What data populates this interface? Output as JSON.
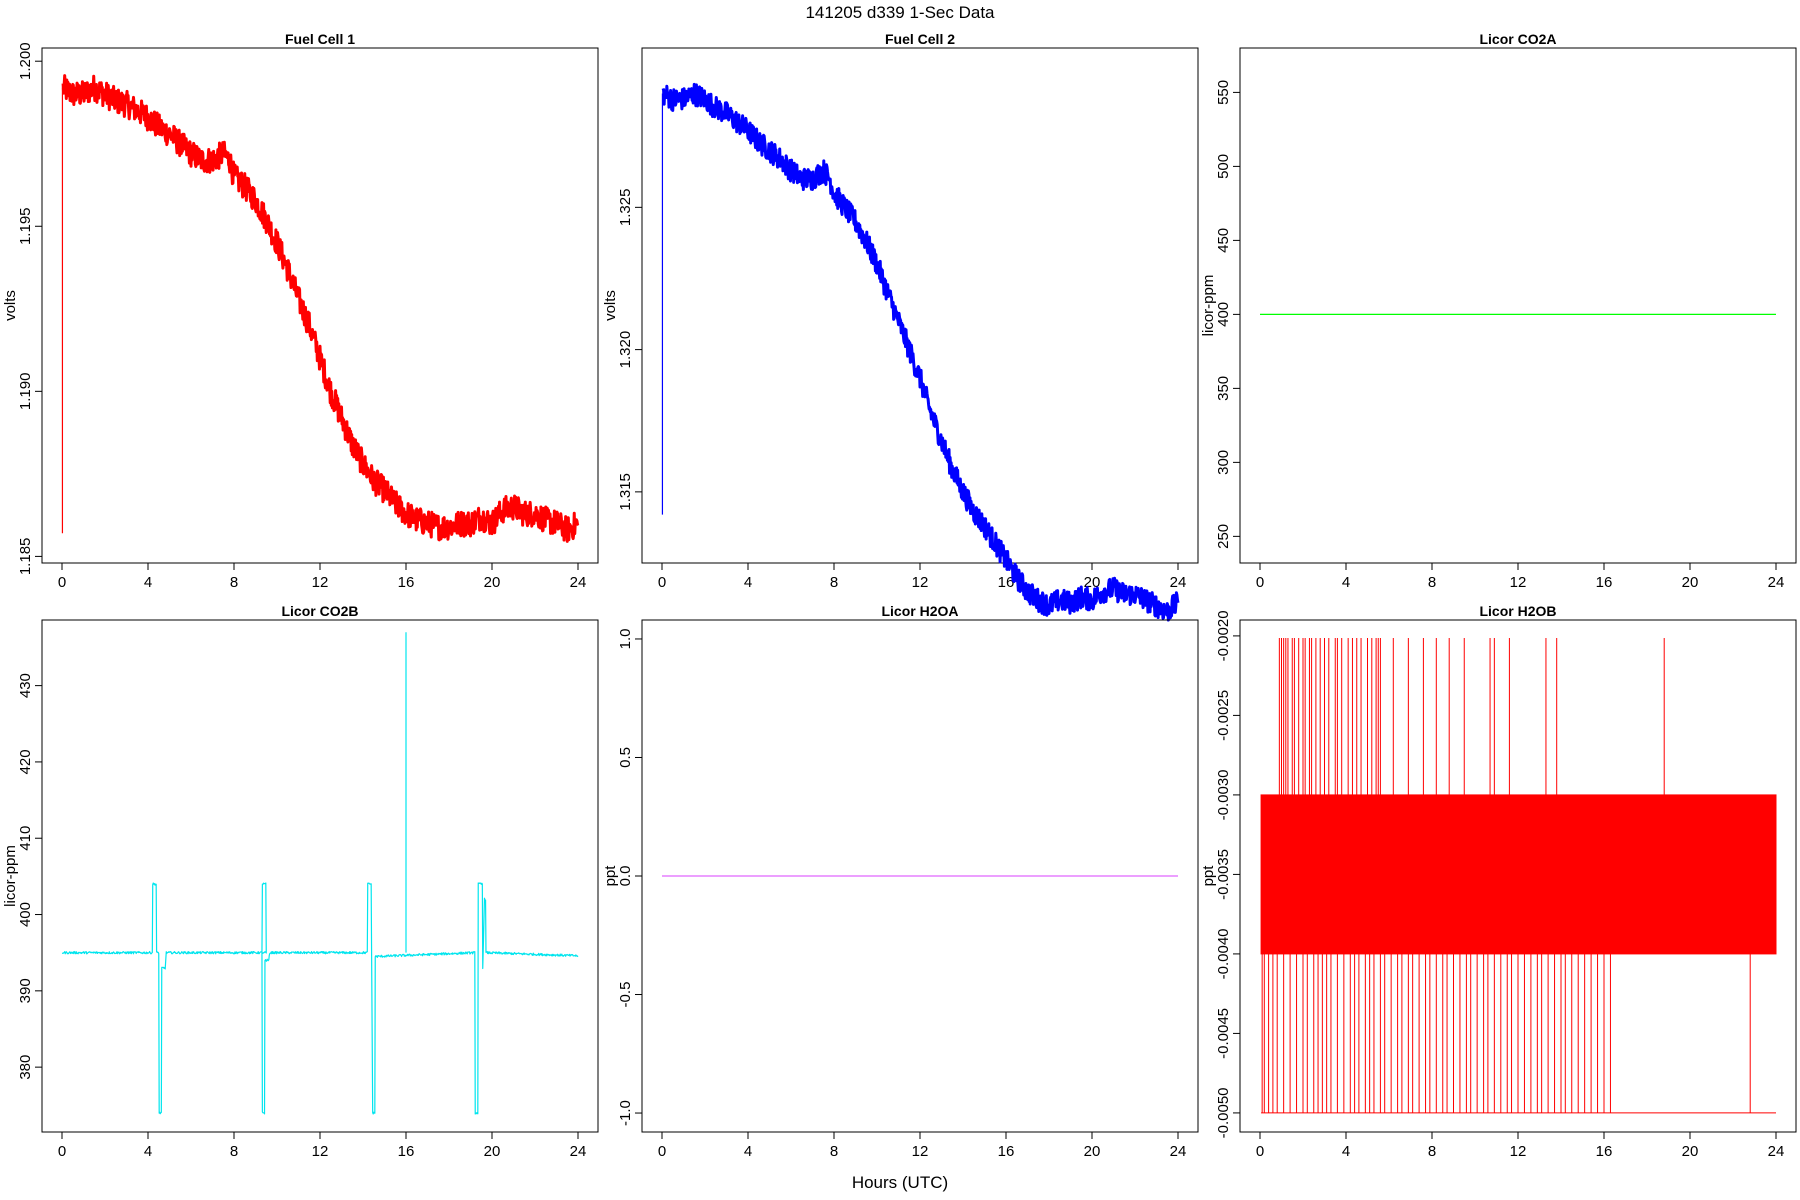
{
  "figure": {
    "title": "141205   d339   1-Sec Data",
    "xlabel": "Hours (UTC)"
  },
  "chart_data": [
    {
      "type": "line",
      "title": "Fuel Cell 1",
      "ylabel": "volts",
      "color": "#ff0000",
      "xlim": [
        0,
        24
      ],
      "ylim": [
        1.1848,
        1.2004
      ],
      "xticks": [
        0,
        4,
        8,
        12,
        16,
        20,
        24
      ],
      "yticks": [
        1.185,
        1.19,
        1.195,
        1.2
      ],
      "ytick_labels": [
        "1.185",
        "1.190",
        "1.195",
        "1.200"
      ],
      "noise": 0.0004,
      "spikes": [
        [
          0.02,
          1.1857
        ]
      ],
      "points": [
        [
          0.05,
          1.1992
        ],
        [
          0.5,
          1.199
        ],
        [
          1.0,
          1.199
        ],
        [
          1.5,
          1.1992
        ],
        [
          2.0,
          1.199
        ],
        [
          2.5,
          1.1988
        ],
        [
          3.0,
          1.1987
        ],
        [
          3.5,
          1.1985
        ],
        [
          4.0,
          1.1983
        ],
        [
          4.5,
          1.198
        ],
        [
          5.0,
          1.1978
        ],
        [
          5.5,
          1.1975
        ],
        [
          6.0,
          1.1972
        ],
        [
          6.5,
          1.197
        ],
        [
          7.0,
          1.197
        ],
        [
          7.5,
          1.1972
        ],
        [
          7.8,
          1.197
        ],
        [
          8.0,
          1.1965
        ],
        [
          8.5,
          1.1962
        ],
        [
          9.0,
          1.1958
        ],
        [
          9.5,
          1.1952
        ],
        [
          10.0,
          1.1945
        ],
        [
          10.5,
          1.1937
        ],
        [
          11.0,
          1.1928
        ],
        [
          11.5,
          1.192
        ],
        [
          12.0,
          1.191
        ],
        [
          12.5,
          1.19
        ],
        [
          13.0,
          1.1892
        ],
        [
          13.5,
          1.1884
        ],
        [
          14.0,
          1.1878
        ],
        [
          14.5,
          1.1873
        ],
        [
          15.0,
          1.187
        ],
        [
          15.5,
          1.1866
        ],
        [
          16.0,
          1.1863
        ],
        [
          16.5,
          1.1861
        ],
        [
          17.0,
          1.186
        ],
        [
          17.5,
          1.1859
        ],
        [
          18.0,
          1.1859
        ],
        [
          18.5,
          1.186
        ],
        [
          19.0,
          1.186
        ],
        [
          19.5,
          1.1862
        ],
        [
          20.0,
          1.186
        ],
        [
          20.5,
          1.1864
        ],
        [
          21.0,
          1.1865
        ],
        [
          21.5,
          1.1863
        ],
        [
          22.0,
          1.1863
        ],
        [
          22.5,
          1.1861
        ],
        [
          23.0,
          1.186
        ],
        [
          23.5,
          1.1858
        ],
        [
          24.0,
          1.186
        ]
      ]
    },
    {
      "type": "line",
      "title": "Fuel Cell 2",
      "ylabel": "volts",
      "color": "#0000ff",
      "xlim": [
        0,
        24
      ],
      "ylim": [
        1.3125,
        1.3306
      ],
      "xticks": [
        0,
        4,
        8,
        12,
        16,
        20,
        24
      ],
      "yticks": [
        1.315,
        1.32,
        1.325
      ],
      "ytick_labels": [
        "1.315",
        "1.320",
        "1.325"
      ],
      "noise": 0.0004,
      "spikes": [
        [
          0.02,
          1.3142
        ]
      ],
      "points": [
        [
          0.05,
          1.329
        ],
        [
          0.5,
          1.3288
        ],
        [
          1.0,
          1.3288
        ],
        [
          1.5,
          1.329
        ],
        [
          2.0,
          1.3288
        ],
        [
          2.5,
          1.3285
        ],
        [
          3.0,
          1.3283
        ],
        [
          3.5,
          1.328
        ],
        [
          4.0,
          1.3277
        ],
        [
          4.5,
          1.3273
        ],
        [
          5.0,
          1.327
        ],
        [
          5.5,
          1.3267
        ],
        [
          6.0,
          1.3263
        ],
        [
          6.5,
          1.326
        ],
        [
          7.0,
          1.326
        ],
        [
          7.5,
          1.3263
        ],
        [
          7.8,
          1.326
        ],
        [
          8.0,
          1.3255
        ],
        [
          8.5,
          1.325
        ],
        [
          9.0,
          1.3245
        ],
        [
          9.5,
          1.3238
        ],
        [
          10.0,
          1.323
        ],
        [
          10.5,
          1.322
        ],
        [
          11.0,
          1.321
        ],
        [
          11.5,
          1.32
        ],
        [
          12.0,
          1.319
        ],
        [
          12.5,
          1.3178
        ],
        [
          13.0,
          1.3168
        ],
        [
          13.5,
          1.3158
        ],
        [
          14.0,
          1.315
        ],
        [
          14.5,
          1.3143
        ],
        [
          15.0,
          1.3138
        ],
        [
          15.5,
          1.3132
        ],
        [
          16.0,
          1.3126
        ],
        [
          16.5,
          1.312
        ],
        [
          17.0,
          1.3115
        ],
        [
          17.5,
          1.3112
        ],
        [
          18.0,
          1.311
        ],
        [
          18.5,
          1.3112
        ],
        [
          19.0,
          1.3111
        ],
        [
          19.5,
          1.3113
        ],
        [
          20.0,
          1.3112
        ],
        [
          20.5,
          1.3115
        ],
        [
          21.0,
          1.3116
        ],
        [
          21.5,
          1.3114
        ],
        [
          22.0,
          1.3114
        ],
        [
          22.5,
          1.3112
        ],
        [
          23.0,
          1.311
        ],
        [
          23.5,
          1.3108
        ],
        [
          24.0,
          1.3111
        ]
      ]
    },
    {
      "type": "line",
      "title": "Licor CO2A",
      "ylabel": "licor-ppm",
      "color": "#00ff00",
      "xlim": [
        0,
        24
      ],
      "ylim": [
        232,
        580
      ],
      "xticks": [
        0,
        4,
        8,
        12,
        16,
        20,
        24
      ],
      "yticks": [
        250,
        300,
        350,
        400,
        450,
        500,
        550
      ],
      "ytick_labels": [
        "250",
        "300",
        "350",
        "400",
        "450",
        "500",
        "550"
      ],
      "noise": 0,
      "spikes": [],
      "points": [
        [
          0,
          400
        ],
        [
          24,
          400
        ]
      ]
    },
    {
      "type": "line",
      "title": "Licor CO2B",
      "ylabel": "licor-ppm",
      "color": "#00e5ee",
      "xlim": [
        0,
        24
      ],
      "ylim": [
        371.5,
        438.6
      ],
      "xticks": [
        0,
        4,
        8,
        12,
        16,
        20,
        24
      ],
      "yticks": [
        380,
        390,
        400,
        410,
        420,
        430
      ],
      "ytick_labels": [
        "380",
        "390",
        "400",
        "410",
        "420",
        "430"
      ],
      "noise": 0.15,
      "spikes": [
        [
          16.0,
          437
        ]
      ],
      "points": [
        [
          0.0,
          395.0
        ],
        [
          4.2,
          395.0
        ],
        [
          4.22,
          404.0
        ],
        [
          4.38,
          404.0
        ],
        [
          4.4,
          395.0
        ],
        [
          4.5,
          395.0
        ],
        [
          4.52,
          374.0
        ],
        [
          4.62,
          374.0
        ],
        [
          4.64,
          393.0
        ],
        [
          4.8,
          393.0
        ],
        [
          4.85,
          395.0
        ],
        [
          9.3,
          395.0
        ],
        [
          9.32,
          404.0
        ],
        [
          9.48,
          404.0
        ],
        [
          9.5,
          395.0
        ],
        [
          9.3,
          395.0
        ],
        [
          9.32,
          374.0
        ],
        [
          9.42,
          374.0
        ],
        [
          9.44,
          394.0
        ],
        [
          9.62,
          394.0
        ],
        [
          9.66,
          395.0
        ],
        [
          14.2,
          395.0
        ],
        [
          14.22,
          404.0
        ],
        [
          14.38,
          404.0
        ],
        [
          14.4,
          395.0
        ],
        [
          14.45,
          374.0
        ],
        [
          14.55,
          374.0
        ],
        [
          14.57,
          394.5
        ],
        [
          19.2,
          395.0
        ],
        [
          19.22,
          374.0
        ],
        [
          19.34,
          374.0
        ],
        [
          19.36,
          404.0
        ],
        [
          19.55,
          404.0
        ],
        [
          19.57,
          393.0
        ],
        [
          19.65,
          402.0
        ],
        [
          19.7,
          402.0
        ],
        [
          19.72,
          395.0
        ],
        [
          24.0,
          394.6
        ]
      ]
    },
    {
      "type": "line",
      "title": "Licor H2OA",
      "ylabel": "ppt",
      "color": "#e066ff",
      "xlim": [
        0,
        24
      ],
      "ylim": [
        -1.08,
        1.08
      ],
      "xticks": [
        0,
        4,
        8,
        12,
        16,
        20,
        24
      ],
      "yticks": [
        -1.0,
        -0.5,
        0.0,
        0.5,
        1.0
      ],
      "ytick_labels": [
        "-1.0",
        "-0.5",
        "0.0",
        "0.5",
        "1.0"
      ],
      "noise": 0,
      "spikes": [],
      "points": [
        [
          0,
          0
        ],
        [
          24,
          0
        ]
      ]
    },
    {
      "type": "line",
      "title": "Licor H2OB",
      "ylabel": "ppt",
      "color": "#ff0000",
      "xlim": [
        0,
        24
      ],
      "ylim": [
        -0.00512,
        -0.0019
      ],
      "xticks": [
        0,
        4,
        8,
        12,
        16,
        20,
        24
      ],
      "yticks": [
        -0.005,
        -0.0045,
        -0.004,
        -0.0035,
        -0.003,
        -0.0025,
        -0.002
      ],
      "ytick_labels": [
        "-0.0050",
        "-0.0045",
        "-0.0040",
        "-0.0035",
        "-0.0030",
        "-0.0025",
        "-0.0020"
      ],
      "band": [
        -0.004,
        -0.003
      ],
      "band_x": [
        0.05,
        24.0
      ],
      "upper_spike_x": [
        0.9,
        1.0,
        1.1,
        1.2,
        1.3,
        1.5,
        1.6,
        1.8,
        2.0,
        2.1,
        2.3,
        2.4,
        2.6,
        2.8,
        3.0,
        3.2,
        3.5,
        3.6,
        3.8,
        4.1,
        4.3,
        4.5,
        4.7,
        5.0,
        5.2,
        5.4,
        5.5,
        5.6,
        6.2,
        6.9,
        7.6,
        8.2,
        8.8,
        9.5,
        10.7,
        10.9,
        11.6,
        13.3,
        13.8,
        18.8
      ],
      "lower_spike_x": [
        0.1,
        0.2,
        0.4,
        0.6,
        0.8,
        1.1,
        1.4,
        1.7,
        2.0,
        2.2,
        2.5,
        2.7,
        2.9,
        3.1,
        3.3,
        3.6,
        3.9,
        4.2,
        4.4,
        4.6,
        4.9,
        5.1,
        5.3,
        5.6,
        5.8,
        6.1,
        6.4,
        6.6,
        6.9,
        7.1,
        7.4,
        7.7,
        7.9,
        8.2,
        8.5,
        8.7,
        9.0,
        9.3,
        9.6,
        9.8,
        10.1,
        10.4,
        10.6,
        10.9,
        11.2,
        11.5,
        11.7,
        12.0,
        12.3,
        12.6,
        12.9,
        13.1,
        13.4,
        13.7,
        14.0,
        14.2,
        14.5,
        14.8,
        15.1,
        15.4,
        15.7,
        16.0,
        16.3,
        22.8
      ]
    }
  ]
}
